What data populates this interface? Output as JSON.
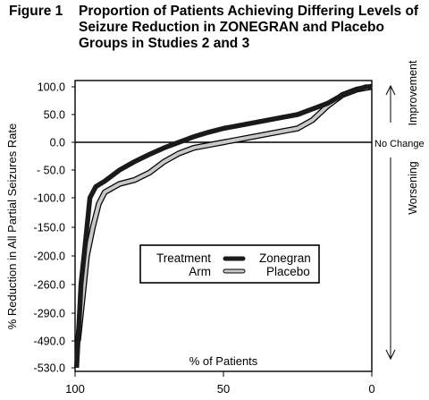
{
  "figure": {
    "number": "Figure 1",
    "caption": "Proportion of Patients Achieving Differing Levels of Seizure Reduction in ZONEGRAN and Placebo Groups in Studies 2 and 3"
  },
  "annotations": {
    "improvement": "Improvement",
    "no_change": "No Change",
    "worsening": "Worsening"
  },
  "legend": {
    "title_line1": "Treatment",
    "title_line2": "Arm",
    "items": [
      {
        "label": "Zonegran",
        "color": "#1a1a1a"
      },
      {
        "label": "Placebo",
        "color": "#c8c8c8"
      }
    ]
  },
  "chart_data": {
    "type": "line",
    "xlabel": "% of Patients",
    "ylabel": "% Reduction in All Partial Seizures Rate",
    "x_ticks": [
      "100",
      "50",
      "0"
    ],
    "xlim": [
      100,
      0
    ],
    "y_ticks": [
      "100.0",
      "50.0",
      "0.0",
      "- 50.0",
      "-100.0",
      "-150.0",
      "-200.0",
      "-260.0",
      "-290.0",
      "-490.0",
      "-530.0"
    ],
    "y_tick_values": [
      100,
      50,
      0,
      -50,
      -100,
      -150,
      -200,
      -260,
      -290,
      -490,
      -530
    ],
    "series": [
      {
        "name": "Zonegran",
        "color": "#1a1a1a",
        "points": [
          [
            99.5,
            -530
          ],
          [
            99,
            -490
          ],
          [
            98.5,
            -290
          ],
          [
            98,
            -260
          ],
          [
            97,
            -200
          ],
          [
            96,
            -150
          ],
          [
            95,
            -100
          ],
          [
            93,
            -80
          ],
          [
            90,
            -70
          ],
          [
            85,
            -50
          ],
          [
            80,
            -35
          ],
          [
            75,
            -22
          ],
          [
            70,
            -10
          ],
          [
            65,
            0
          ],
          [
            60,
            10
          ],
          [
            55,
            18
          ],
          [
            50,
            25
          ],
          [
            45,
            30
          ],
          [
            40,
            35
          ],
          [
            35,
            40
          ],
          [
            30,
            45
          ],
          [
            25,
            50
          ],
          [
            20,
            60
          ],
          [
            15,
            70
          ],
          [
            10,
            85
          ],
          [
            5,
            95
          ],
          [
            2,
            100
          ],
          [
            0,
            100
          ]
        ]
      },
      {
        "name": "Placebo",
        "color": "#c8c8c8",
        "points": [
          [
            99,
            -490
          ],
          [
            98,
            -290
          ],
          [
            97,
            -260
          ],
          [
            96,
            -200
          ],
          [
            94,
            -150
          ],
          [
            92,
            -110
          ],
          [
            90,
            -90
          ],
          [
            85,
            -75
          ],
          [
            80,
            -68
          ],
          [
            75,
            -55
          ],
          [
            70,
            -35
          ],
          [
            65,
            -20
          ],
          [
            60,
            -10
          ],
          [
            55,
            -5
          ],
          [
            50,
            0
          ],
          [
            45,
            5
          ],
          [
            40,
            10
          ],
          [
            35,
            15
          ],
          [
            30,
            20
          ],
          [
            25,
            25
          ],
          [
            20,
            40
          ],
          [
            15,
            65
          ],
          [
            10,
            85
          ],
          [
            5,
            95
          ],
          [
            0,
            100
          ]
        ]
      }
    ],
    "reference_line": {
      "y": 0
    },
    "grid": false,
    "legend_position": "center-bottom"
  }
}
